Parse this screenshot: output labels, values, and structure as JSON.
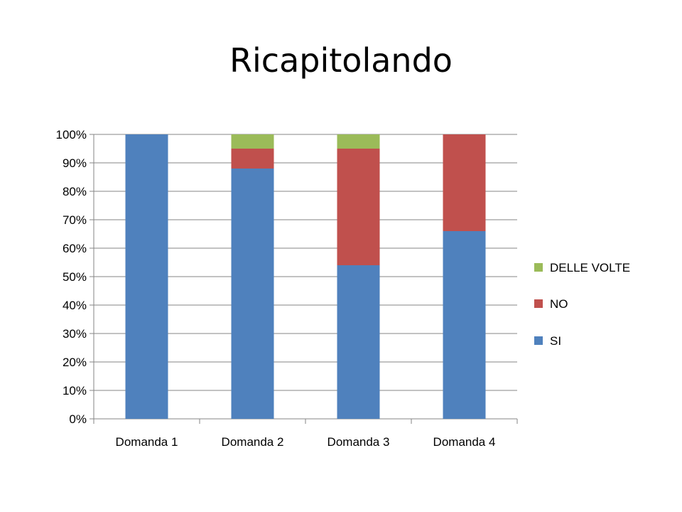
{
  "slide": {
    "title": "Ricapitolando"
  },
  "chart_data": {
    "type": "bar",
    "stacked": true,
    "categories": [
      "Domanda 1",
      "Domanda 2",
      "Domanda 3",
      "Domanda 4"
    ],
    "series": [
      {
        "name": "SI",
        "values": [
          100,
          88,
          54,
          66
        ],
        "color": "#4F81BD"
      },
      {
        "name": "NO",
        "values": [
          0,
          7,
          41,
          34
        ],
        "color": "#C0504D"
      },
      {
        "name": "DELLE VOLTE",
        "values": [
          0,
          5,
          5,
          0
        ],
        "color": "#9BBB59"
      }
    ],
    "yticks": [
      "0%",
      "10%",
      "20%",
      "30%",
      "40%",
      "50%",
      "60%",
      "70%",
      "80%",
      "90%",
      "100%"
    ],
    "ylim": [
      0,
      100
    ],
    "grid": true,
    "legend_position": "right",
    "legend_order": [
      "DELLE VOLTE",
      "NO",
      "SI"
    ],
    "xlabel": "",
    "ylabel": ""
  }
}
